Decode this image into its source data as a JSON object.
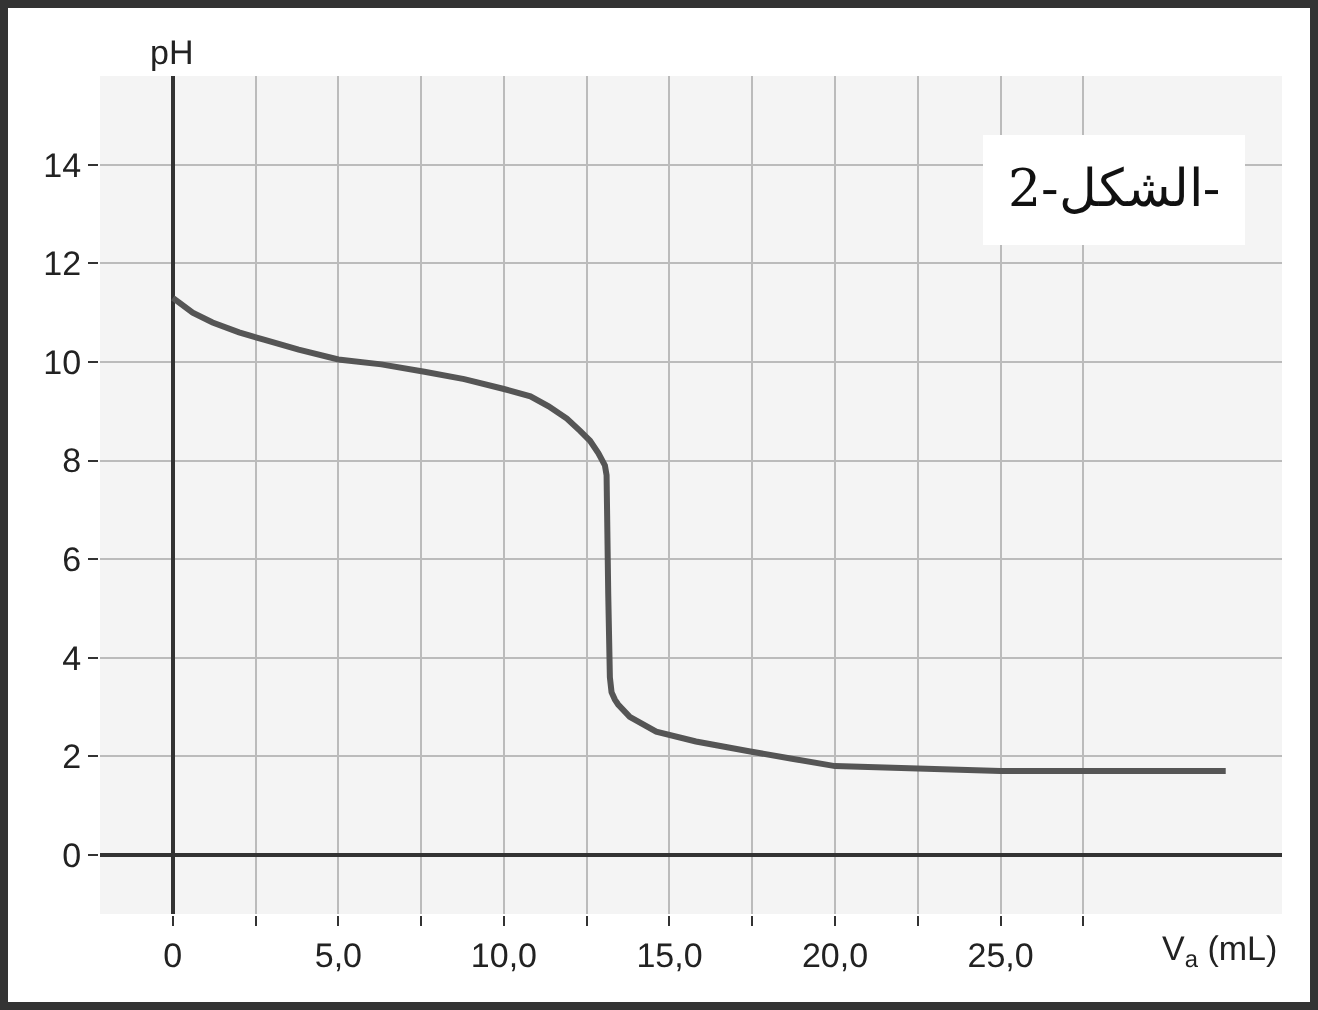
{
  "chart_data": {
    "type": "line",
    "xlabel": "V$_{a}$ (mL)",
    "ylabel": "pH",
    "annotations": [
      "الشكل-2-"
    ],
    "x": [
      0,
      0.6,
      1.2,
      2.0,
      2.75,
      3.8,
      5.0,
      6.3,
      7.6,
      8.8,
      10.0,
      10.8,
      11.35,
      11.9,
      12.3,
      12.6,
      12.85,
      13.05,
      13.1,
      13.15,
      13.2,
      13.25,
      13.35,
      13.45,
      13.8,
      14.6,
      15.8,
      17.4,
      18.7,
      20.0,
      22.5,
      25.0,
      31.8
    ],
    "series": [
      {
        "color": "#555555",
        "values": [
          11.3,
          11.0,
          10.8,
          10.6,
          10.45,
          10.25,
          10.05,
          9.95,
          9.8,
          9.65,
          9.45,
          9.3,
          9.1,
          8.85,
          8.6,
          8.4,
          8.15,
          7.9,
          7.7,
          5.3,
          3.6,
          3.3,
          3.15,
          3.05,
          2.8,
          2.5,
          2.3,
          2.1,
          1.95,
          1.8,
          1.75,
          1.7,
          1.7
        ]
      }
    ],
    "xlim": [
      -2.2,
      33.5
    ],
    "ylim": [
      -1.2,
      15.8
    ],
    "xticks": [
      0,
      {
        "value": 2.5,
        "label": null
      },
      {
        "value": 5,
        "label": "5,0"
      },
      {
        "value": 7.5,
        "label": null
      },
      {
        "value": 10,
        "label": "10,0"
      },
      {
        "value": 12.5,
        "label": null
      },
      {
        "value": 15,
        "label": "15,0"
      },
      {
        "value": 17.5,
        "label": null
      },
      {
        "value": 20,
        "label": "20,0"
      },
      {
        "value": 22.5,
        "label": null
      },
      {
        "value": 25,
        "label": "25,0"
      },
      {
        "value": 27.5,
        "label": null
      }
    ],
    "yticks": [
      0,
      2,
      4,
      6,
      8,
      10,
      12,
      14
    ],
    "grid": true,
    "marker": "none",
    "line_style": "solid"
  }
}
